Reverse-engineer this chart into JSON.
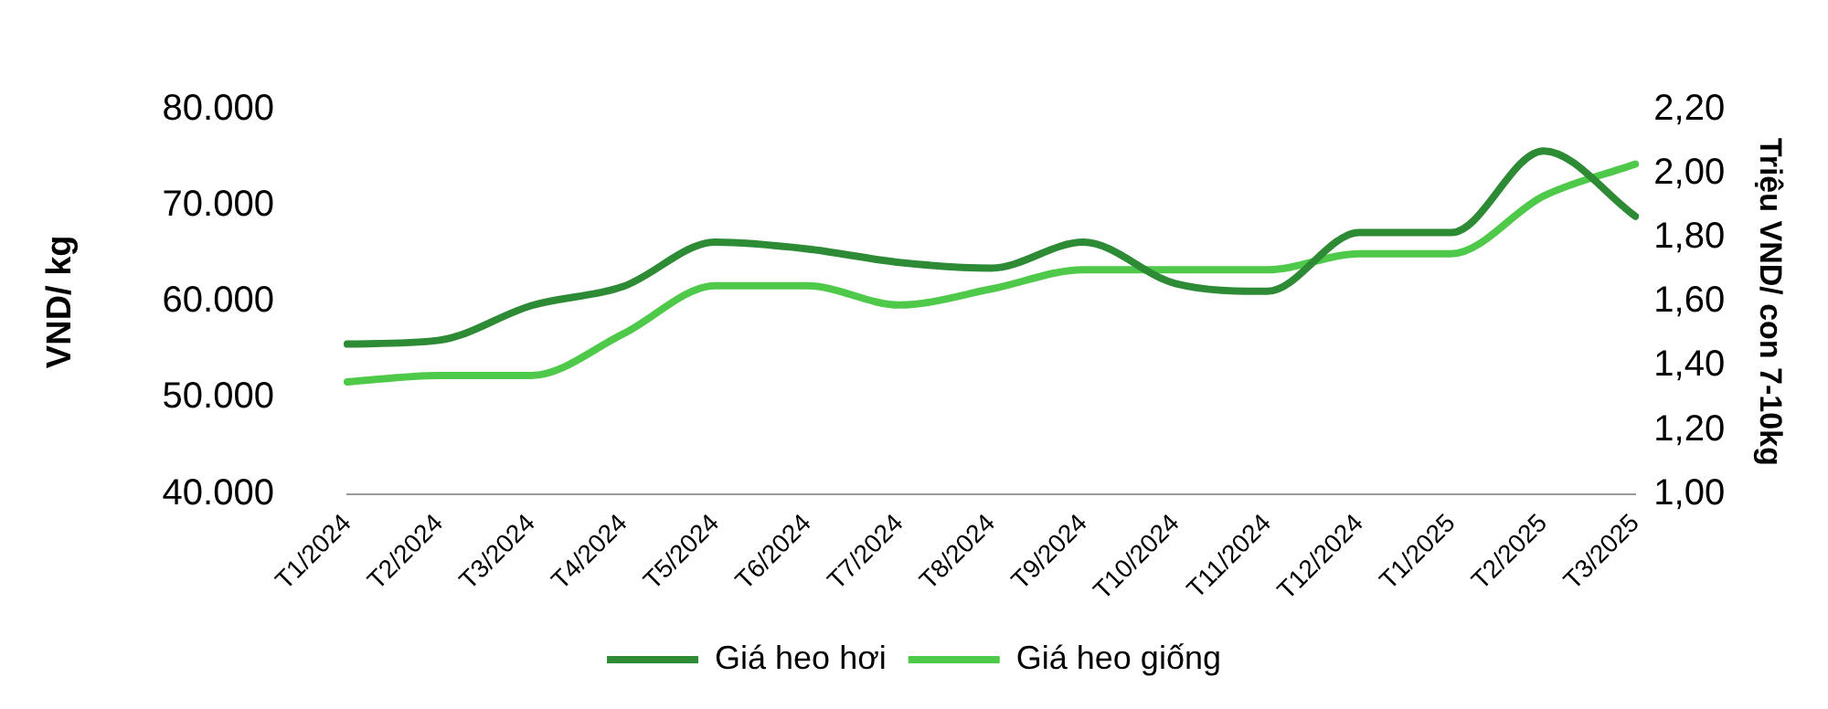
{
  "chart_data": {
    "type": "line",
    "ylabel": "VND/ kg",
    "y2label": "Triệu VND/ con 7-10kg",
    "categories": [
      "T1/2024",
      "T2/2024",
      "T3/2024",
      "T4/2024",
      "T5/2024",
      "T6/2024",
      "T7/2024",
      "T8/2024",
      "T9/2024",
      "T10/2024",
      "T11/2024",
      "T12/2024",
      "T1/2025",
      "T2/2025",
      "T3/2025"
    ],
    "series": [
      {
        "name": "Giá heo hơi",
        "color": "#2e8b35",
        "values": [
          55600,
          56000,
          59600,
          61600,
          66200,
          65500,
          64100,
          63500,
          66200,
          61900,
          61100,
          67200,
          67200,
          75700,
          68900
        ]
      },
      {
        "name": "Giá heo giống",
        "color": "#4fc94a",
        "axis": "y2",
        "values": [
          1.35,
          1.37,
          1.37,
          1.5,
          1.65,
          1.65,
          1.59,
          1.64,
          1.7,
          1.7,
          1.7,
          1.75,
          1.75,
          1.93,
          2.03
        ]
      }
    ],
    "ylim": [
      40000,
      80000
    ],
    "yticks": [
      {
        "value": 40000,
        "label": "40.000"
      },
      {
        "value": 50000,
        "label": "50.000"
      },
      {
        "value": 60000,
        "label": "60.000"
      },
      {
        "value": 70000,
        "label": "70.000"
      },
      {
        "value": 80000,
        "label": "80.000"
      }
    ],
    "y2lim": [
      1,
      2.2
    ],
    "y2ticks": [
      {
        "value": 1,
        "label": "1,00"
      },
      {
        "value": 1.2,
        "label": "1,20"
      },
      {
        "value": 1.4,
        "label": "1,40"
      },
      {
        "value": 1.6,
        "label": "1,60"
      },
      {
        "value": 1.8,
        "label": "1,80"
      },
      {
        "value": 2,
        "label": "2,00"
      },
      {
        "value": 2.2,
        "label": "2,20"
      }
    ],
    "grid": false,
    "legend": "bottom",
    "marker": "none",
    "line_style": "solid"
  }
}
